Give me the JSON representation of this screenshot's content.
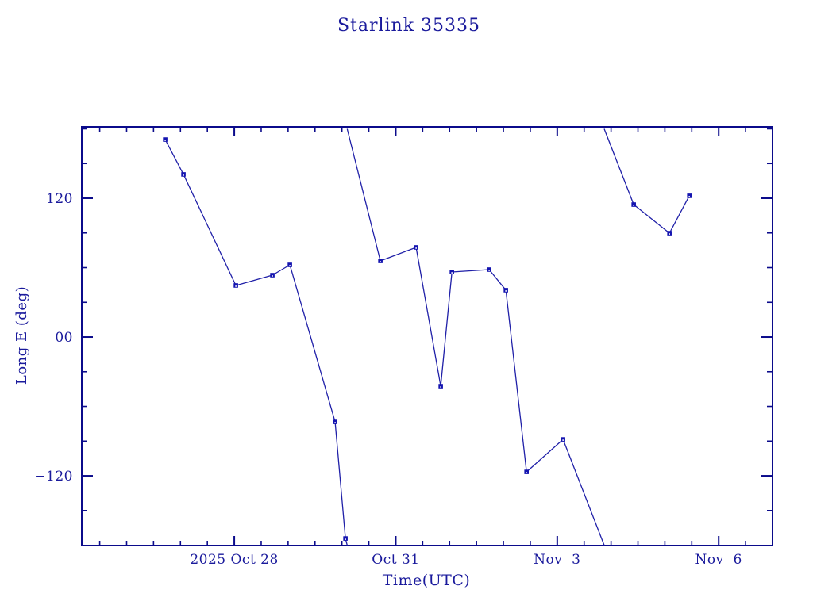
{
  "chart_data": {
    "type": "line",
    "title": "Starlink 35335",
    "xlabel": "Time(UTC)",
    "ylabel": "Long E (deg)",
    "x_unit": "days relative to first labeled tick (2025 Oct 28 00:00 UTC)",
    "xlim": [
      -2.8333,
      10.0
    ],
    "ylim": [
      -180.3,
      181.7
    ],
    "x_major_ticks": [
      {
        "t": 0,
        "label": "2025 Oct 28"
      },
      {
        "t": 3,
        "label": "Oct 31"
      },
      {
        "t": 6,
        "label": "Nov  3"
      },
      {
        "t": 9,
        "label": "Nov  6"
      }
    ],
    "x_minor_step": 0.5,
    "y_major_ticks": [
      {
        "v": 120,
        "label": "120"
      },
      {
        "v": 0,
        "label": "00"
      },
      {
        "v": -120,
        "label": "−120"
      }
    ],
    "y_minor_step": 30,
    "grid": false,
    "legend": false,
    "marker_shape": "filled-square",
    "wrap_longitude_at": 180,
    "series": [
      {
        "name": "Long E (deg)",
        "points": [
          {
            "t": -1.283,
            "lon": 170.7
          },
          {
            "t": -0.944,
            "lon": 140.6
          },
          {
            "t": 0.03,
            "lon": 44.6
          },
          {
            "t": 0.708,
            "lon": 53.5
          },
          {
            "t": 1.033,
            "lon": 62.4
          },
          {
            "t": 1.874,
            "lon": -73.4
          },
          {
            "t": 2.066,
            "lon": -174.2
          },
          {
            "t": 2.715,
            "lon": 65.8
          },
          {
            "t": 3.379,
            "lon": 77.5
          },
          {
            "t": 3.836,
            "lon": -42.5
          },
          {
            "t": 4.043,
            "lon": 56.2
          },
          {
            "t": 4.736,
            "lon": 58.3
          },
          {
            "t": 5.046,
            "lon": 40.5
          },
          {
            "t": 5.43,
            "lon": -116.6
          },
          {
            "t": 6.108,
            "lon": -88.5
          },
          {
            "t": 7.421,
            "lon": 114.5
          },
          {
            "t": 8.085,
            "lon": 89.8
          },
          {
            "t": 8.454,
            "lon": 122.1
          }
        ]
      }
    ],
    "colors": {
      "background": "#ffffff",
      "axis": "#0b0b8b",
      "text": "#1a1a9c",
      "line": "#2020a8",
      "marker": "#1414b0",
      "marker_center": "#ffffff"
    }
  }
}
